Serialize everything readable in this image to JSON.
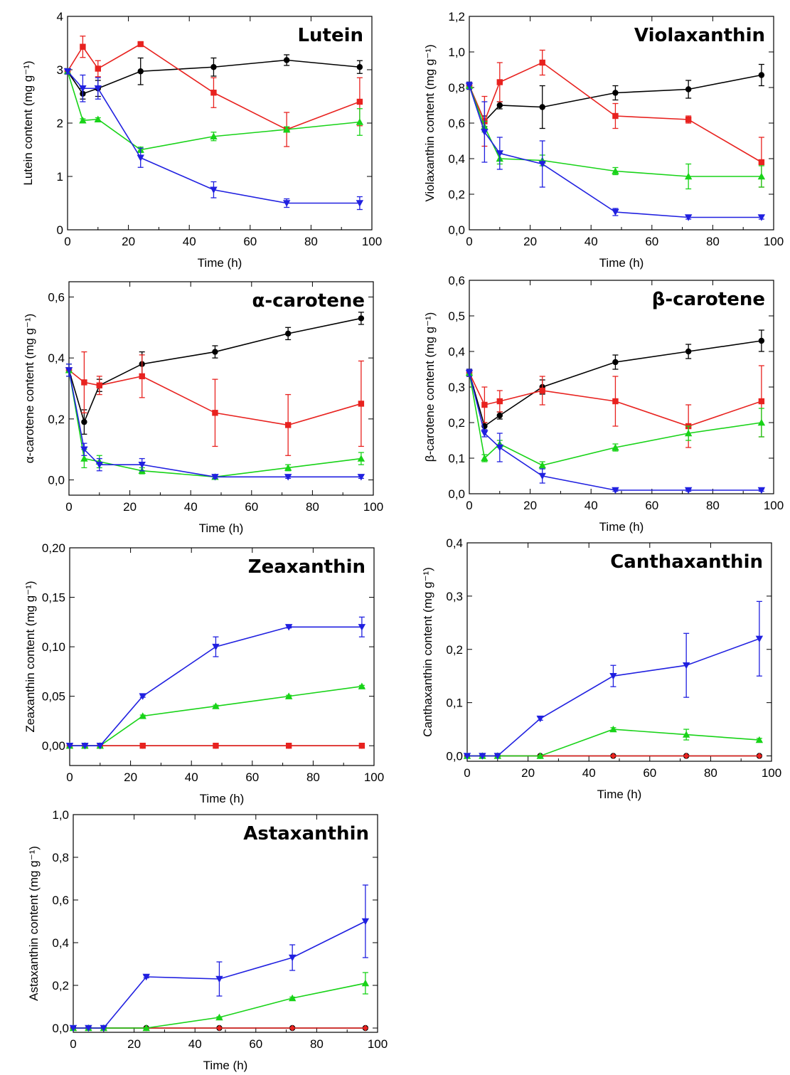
{
  "chart_data": [
    {
      "type": "line",
      "title": "Lutein",
      "xlabel": "Time (h)",
      "ylabel": "Lutein content (mg g⁻¹)",
      "xlim": [
        0,
        100
      ],
      "ylim": [
        0,
        4
      ],
      "xticks": [
        "0",
        "20",
        "40",
        "60",
        "80",
        "100"
      ],
      "yticks": [
        "0",
        "1",
        "2",
        "3",
        "4"
      ],
      "x": [
        0,
        5,
        10,
        24,
        48,
        72,
        96
      ],
      "series": [
        {
          "color": "#000000",
          "marker": "circle",
          "values": [
            2.97,
            2.55,
            2.65,
            2.97,
            3.05,
            3.18,
            3.05
          ],
          "err": [
            0.05,
            0.1,
            0.15,
            0.25,
            0.17,
            0.1,
            0.12
          ]
        },
        {
          "color": "#e8221f",
          "marker": "square",
          "values": [
            2.97,
            3.43,
            3.02,
            3.48,
            2.57,
            1.88,
            2.4
          ],
          "err": [
            0.05,
            0.2,
            0.15,
            0.03,
            0.28,
            0.32,
            0.45
          ]
        },
        {
          "color": "#18d318",
          "marker": "triangle-up",
          "values": [
            2.97,
            2.05,
            2.07,
            1.5,
            1.75,
            1.88,
            2.02
          ],
          "err": [
            0.05,
            0.03,
            0.03,
            0.05,
            0.08,
            0.05,
            0.25
          ]
        },
        {
          "color": "#2020e0",
          "marker": "triangle-down",
          "values": [
            2.97,
            2.65,
            2.65,
            1.35,
            0.75,
            0.5,
            0.5
          ],
          "err": [
            0.05,
            0.25,
            0.2,
            0.18,
            0.15,
            0.08,
            0.12
          ]
        }
      ]
    },
    {
      "type": "line",
      "title": "Violaxanthin",
      "xlabel": "Time (h)",
      "ylabel": "Violaxanthin content (mg g⁻¹)",
      "xlim": [
        0,
        100
      ],
      "ylim": [
        0,
        1.2
      ],
      "xticks": [
        "0",
        "20",
        "40",
        "60",
        "80",
        "100"
      ],
      "yticks": [
        "0,0",
        "0,2",
        "0,4",
        "0,6",
        "0,8",
        "1,0",
        "1,2"
      ],
      "x": [
        0,
        5,
        10,
        24,
        48,
        72,
        96
      ],
      "series": [
        {
          "color": "#000000",
          "marker": "circle",
          "values": [
            0.81,
            0.61,
            0.7,
            0.69,
            0.77,
            0.79,
            0.87
          ],
          "err": [
            0.02,
            0.03,
            0.02,
            0.12,
            0.04,
            0.05,
            0.06
          ]
        },
        {
          "color": "#e8221f",
          "marker": "square",
          "values": [
            0.81,
            0.61,
            0.83,
            0.94,
            0.64,
            0.62,
            0.38
          ],
          "err": [
            0.02,
            0.14,
            0.11,
            0.07,
            0.07,
            0.02,
            0.14
          ]
        },
        {
          "color": "#18d318",
          "marker": "triangle-up",
          "values": [
            0.81,
            0.58,
            0.4,
            0.39,
            0.33,
            0.3,
            0.3
          ],
          "err": [
            0.02,
            0.03,
            0.03,
            0.03,
            0.02,
            0.07,
            0.06
          ]
        },
        {
          "color": "#2020e0",
          "marker": "triangle-down",
          "values": [
            0.81,
            0.55,
            0.43,
            0.37,
            0.1,
            0.07,
            0.07
          ],
          "err": [
            0.02,
            0.17,
            0.09,
            0.13,
            0.02,
            0.01,
            0.01
          ]
        }
      ]
    },
    {
      "type": "line",
      "title": "α-carotene",
      "xlabel": "Time (h)",
      "ylabel": "α-carotene content (mg g⁻¹)",
      "xlim": [
        0,
        100
      ],
      "ylim": [
        -0.05,
        0.65
      ],
      "xticks": [
        "0",
        "20",
        "40",
        "60",
        "80",
        "100"
      ],
      "yticks": [
        "0,0",
        "0,2",
        "0,4",
        "0,6"
      ],
      "x": [
        0,
        5,
        10,
        24,
        48,
        72,
        96
      ],
      "series": [
        {
          "color": "#000000",
          "marker": "circle",
          "values": [
            0.36,
            0.19,
            0.31,
            0.38,
            0.42,
            0.48,
            0.53
          ],
          "err": [
            0.02,
            0.04,
            0.02,
            0.04,
            0.02,
            0.02,
            0.02
          ]
        },
        {
          "color": "#e8221f",
          "marker": "square",
          "values": [
            0.36,
            0.32,
            0.31,
            0.34,
            0.22,
            0.18,
            0.25
          ],
          "err": [
            0.02,
            0.1,
            0.03,
            0.07,
            0.11,
            0.1,
            0.14
          ]
        },
        {
          "color": "#18d318",
          "marker": "triangle-up",
          "values": [
            0.36,
            0.07,
            0.06,
            0.03,
            0.01,
            0.04,
            0.07
          ],
          "err": [
            0.02,
            0.03,
            0.02,
            0.01,
            0.005,
            0.01,
            0.02
          ]
        },
        {
          "color": "#2020e0",
          "marker": "triangle-down",
          "values": [
            0.36,
            0.1,
            0.05,
            0.05,
            0.01,
            0.01,
            0.01
          ],
          "err": [
            0.02,
            0.02,
            0.02,
            0.02,
            0.005,
            0.005,
            0.005
          ]
        }
      ]
    },
    {
      "type": "line",
      "title": "β-carotene",
      "xlabel": "Time (h)",
      "ylabel": "β-carotene content (mg g⁻¹)",
      "xlim": [
        0,
        100
      ],
      "ylim": [
        0,
        0.6
      ],
      "xticks": [
        "0",
        "20",
        "40",
        "60",
        "80",
        "100"
      ],
      "yticks": [
        "0,0",
        "0,1",
        "0,2",
        "0,3",
        "0,4",
        "0,5",
        "0,6"
      ],
      "x": [
        0,
        5,
        10,
        24,
        48,
        72,
        96
      ],
      "series": [
        {
          "color": "#000000",
          "marker": "circle",
          "values": [
            0.34,
            0.19,
            0.22,
            0.3,
            0.37,
            0.4,
            0.43
          ],
          "err": [
            0.01,
            0.01,
            0.01,
            0.02,
            0.02,
            0.02,
            0.03
          ]
        },
        {
          "color": "#e8221f",
          "marker": "square",
          "values": [
            0.34,
            0.25,
            0.26,
            0.29,
            0.26,
            0.19,
            0.26
          ],
          "err": [
            0.01,
            0.05,
            0.03,
            0.04,
            0.07,
            0.06,
            0.1
          ]
        },
        {
          "color": "#18d318",
          "marker": "triangle-up",
          "values": [
            0.34,
            0.1,
            0.14,
            0.08,
            0.13,
            0.17,
            0.2
          ],
          "err": [
            0.01,
            0.01,
            0.01,
            0.01,
            0.01,
            0.02,
            0.04
          ]
        },
        {
          "color": "#2020e0",
          "marker": "triangle-down",
          "values": [
            0.34,
            0.17,
            0.13,
            0.05,
            0.01,
            0.01,
            0.01
          ],
          "err": [
            0.01,
            0.01,
            0.04,
            0.02,
            0.003,
            0.003,
            0.003
          ]
        }
      ]
    },
    {
      "type": "line",
      "title": "Zeaxanthin",
      "xlabel": "Time (h)",
      "ylabel": "Zeaxanthin content (mg g⁻¹)",
      "xlim": [
        0,
        100
      ],
      "ylim": [
        -0.02,
        0.2
      ],
      "xticks": [
        "0",
        "20",
        "40",
        "60",
        "80",
        "100"
      ],
      "yticks": [
        "0,00",
        "0,05",
        "0,10",
        "0,15",
        "0,20"
      ],
      "x": [
        0,
        5,
        10,
        24,
        48,
        72,
        96
      ],
      "series": [
        {
          "color": "#000000",
          "marker": "circle",
          "values": [
            0,
            0,
            0,
            0,
            0,
            0,
            0
          ],
          "err": [
            0,
            0,
            0,
            0,
            0,
            0,
            0
          ]
        },
        {
          "color": "#e8221f",
          "marker": "square",
          "values": [
            0,
            0,
            0,
            0,
            0,
            0,
            0
          ],
          "err": [
            0,
            0,
            0,
            0,
            0,
            0,
            0
          ]
        },
        {
          "color": "#18d318",
          "marker": "triangle-up",
          "values": [
            0,
            0,
            0,
            0.03,
            0.04,
            0.05,
            0.06
          ],
          "err": [
            0,
            0,
            0,
            0.001,
            0.001,
            0.001,
            0.001
          ]
        },
        {
          "color": "#2020e0",
          "marker": "triangle-down",
          "values": [
            0,
            0,
            0,
            0.05,
            0.1,
            0.12,
            0.12
          ],
          "err": [
            0,
            0,
            0,
            0.001,
            0.01,
            0.001,
            0.01
          ]
        }
      ]
    },
    {
      "type": "line",
      "title": "Canthaxanthin",
      "xlabel": "Time (h)",
      "ylabel": "Canthaxanthin content (mg g⁻¹)",
      "xlim": [
        0,
        100
      ],
      "ylim": [
        -0.01,
        0.4
      ],
      "xticks": [
        "0",
        "20",
        "40",
        "60",
        "80",
        "100"
      ],
      "yticks": [
        "0,0",
        "0,1",
        "0,2",
        "0,3",
        "0,4"
      ],
      "x": [
        0,
        5,
        10,
        24,
        48,
        72,
        96
      ],
      "series": [
        {
          "color": "#000000",
          "marker": "circle",
          "values": [
            0,
            0,
            0,
            0,
            0,
            0,
            0
          ],
          "err": [
            0,
            0,
            0,
            0,
            0,
            0,
            0
          ]
        },
        {
          "color": "#e8221f",
          "marker": "diamond",
          "values": [
            0,
            0,
            0,
            0,
            0,
            0,
            0
          ],
          "err": [
            0,
            0,
            0,
            0,
            0,
            0,
            0
          ]
        },
        {
          "color": "#18d318",
          "marker": "triangle-up",
          "values": [
            0,
            0,
            0,
            0,
            0.05,
            0.04,
            0.03
          ],
          "err": [
            0,
            0,
            0,
            0,
            0.003,
            0.01,
            0.003
          ]
        },
        {
          "color": "#2020e0",
          "marker": "triangle-down",
          "values": [
            0,
            0,
            0,
            0.07,
            0.15,
            0.17,
            0.22
          ],
          "err": [
            0,
            0,
            0,
            0.003,
            0.02,
            0.06,
            0.07
          ]
        }
      ]
    },
    {
      "type": "line",
      "title": "Astaxanthin",
      "xlabel": "Time (h)",
      "ylabel": "Astaxanthin content (mg g⁻¹)",
      "xlim": [
        0,
        100
      ],
      "ylim": [
        -0.02,
        1.0
      ],
      "xticks": [
        "0",
        "20",
        "40",
        "60",
        "80",
        "100"
      ],
      "yticks": [
        "0,0",
        "0,2",
        "0,4",
        "0,6",
        "0,8",
        "1,0"
      ],
      "x": [
        0,
        5,
        10,
        24,
        48,
        72,
        96
      ],
      "series": [
        {
          "color": "#000000",
          "marker": "circle",
          "values": [
            0,
            0,
            0,
            0,
            0,
            0,
            0
          ],
          "err": [
            0,
            0,
            0,
            0,
            0,
            0,
            0
          ]
        },
        {
          "color": "#e8221f",
          "marker": "diamond",
          "values": [
            0,
            0,
            0,
            0,
            0,
            0,
            0
          ],
          "err": [
            0,
            0,
            0,
            0,
            0,
            0,
            0
          ]
        },
        {
          "color": "#18d318",
          "marker": "triangle-up",
          "values": [
            0,
            0,
            0,
            0,
            0.05,
            0.14,
            0.21
          ],
          "err": [
            0,
            0,
            0,
            0,
            0.003,
            0.005,
            0.05
          ]
        },
        {
          "color": "#2020e0",
          "marker": "triangle-down",
          "values": [
            0,
            0,
            0,
            0.24,
            0.23,
            0.33,
            0.5
          ],
          "err": [
            0,
            0,
            0,
            0.005,
            0.08,
            0.06,
            0.17
          ]
        }
      ]
    }
  ]
}
